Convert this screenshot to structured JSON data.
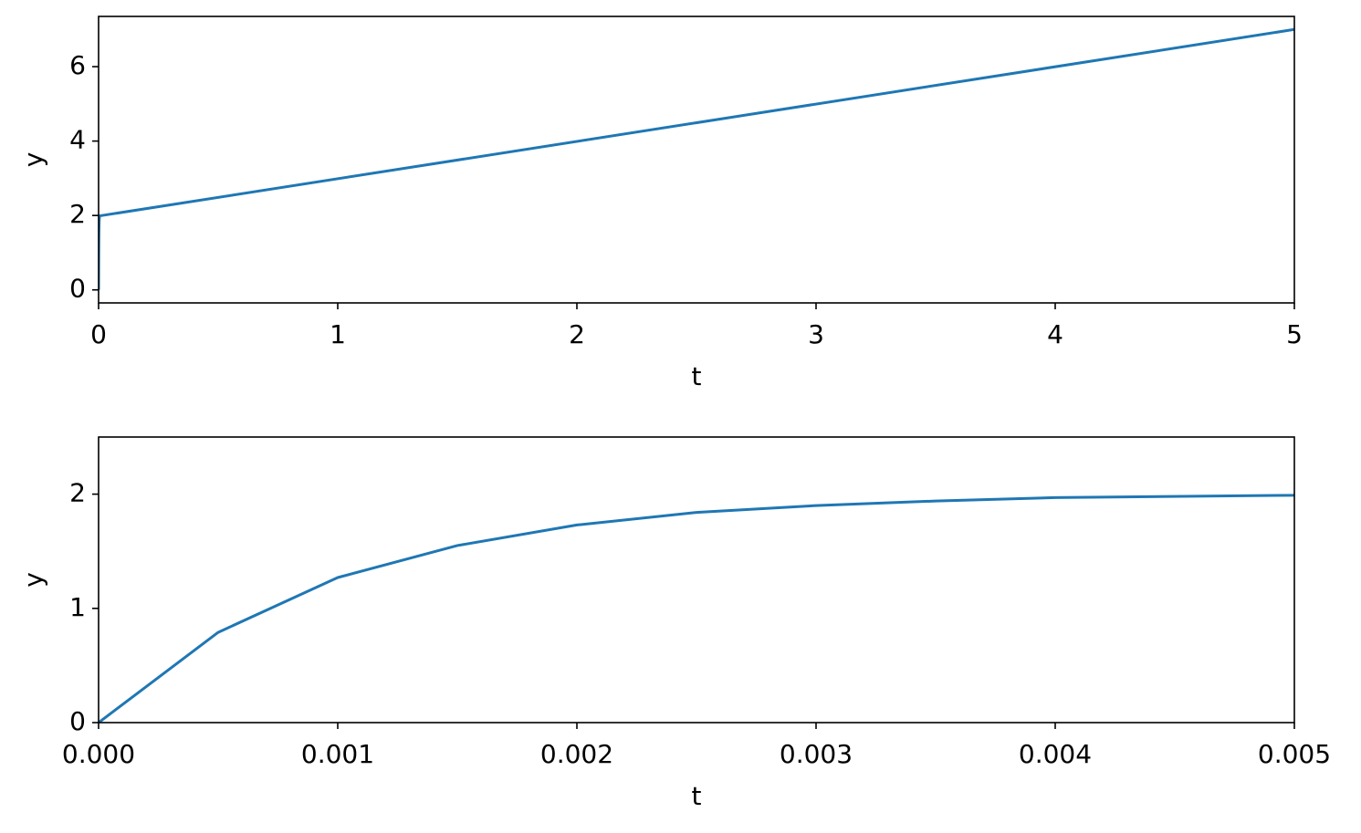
{
  "chart_data": [
    {
      "type": "line",
      "x_label": "t",
      "y_label": "y",
      "xlim": [
        0,
        5
      ],
      "ylim": [
        -0.35,
        7.35
      ],
      "xticks": [
        0,
        1,
        2,
        3,
        4,
        5
      ],
      "yticks": [
        0,
        2,
        4,
        6
      ],
      "series": [
        {
          "color": "#1f77b4",
          "x": [
            0,
            0.0005,
            0.001,
            0.0015,
            0.002,
            0.0025,
            0.003,
            0.0035,
            0.004,
            0.005,
            5
          ],
          "values": [
            0,
            0.79,
            1.27,
            1.55,
            1.73,
            1.84,
            1.9,
            1.94,
            1.97,
            1.99,
            7
          ]
        }
      ]
    },
    {
      "type": "line",
      "x_label": "t",
      "y_label": "y",
      "xlim": [
        0,
        0.005
      ],
      "ylim": [
        0,
        2.5
      ],
      "xticks": [
        {
          "value": 0,
          "label": "0.000"
        },
        {
          "value": 0.001,
          "label": "0.001"
        },
        {
          "value": 0.002,
          "label": "0.002"
        },
        {
          "value": 0.003,
          "label": "0.003"
        },
        {
          "value": 0.004,
          "label": "0.004"
        },
        {
          "value": 0.005,
          "label": "0.005"
        }
      ],
      "yticks": [
        0,
        1,
        2
      ],
      "series": [
        {
          "color": "#1f77b4",
          "x": [
            0,
            0.0005,
            0.001,
            0.0015,
            0.002,
            0.0025,
            0.003,
            0.0035,
            0.004,
            0.005
          ],
          "values": [
            0,
            0.79,
            1.27,
            1.55,
            1.73,
            1.84,
            1.9,
            1.94,
            1.97,
            1.99
          ]
        }
      ]
    }
  ]
}
